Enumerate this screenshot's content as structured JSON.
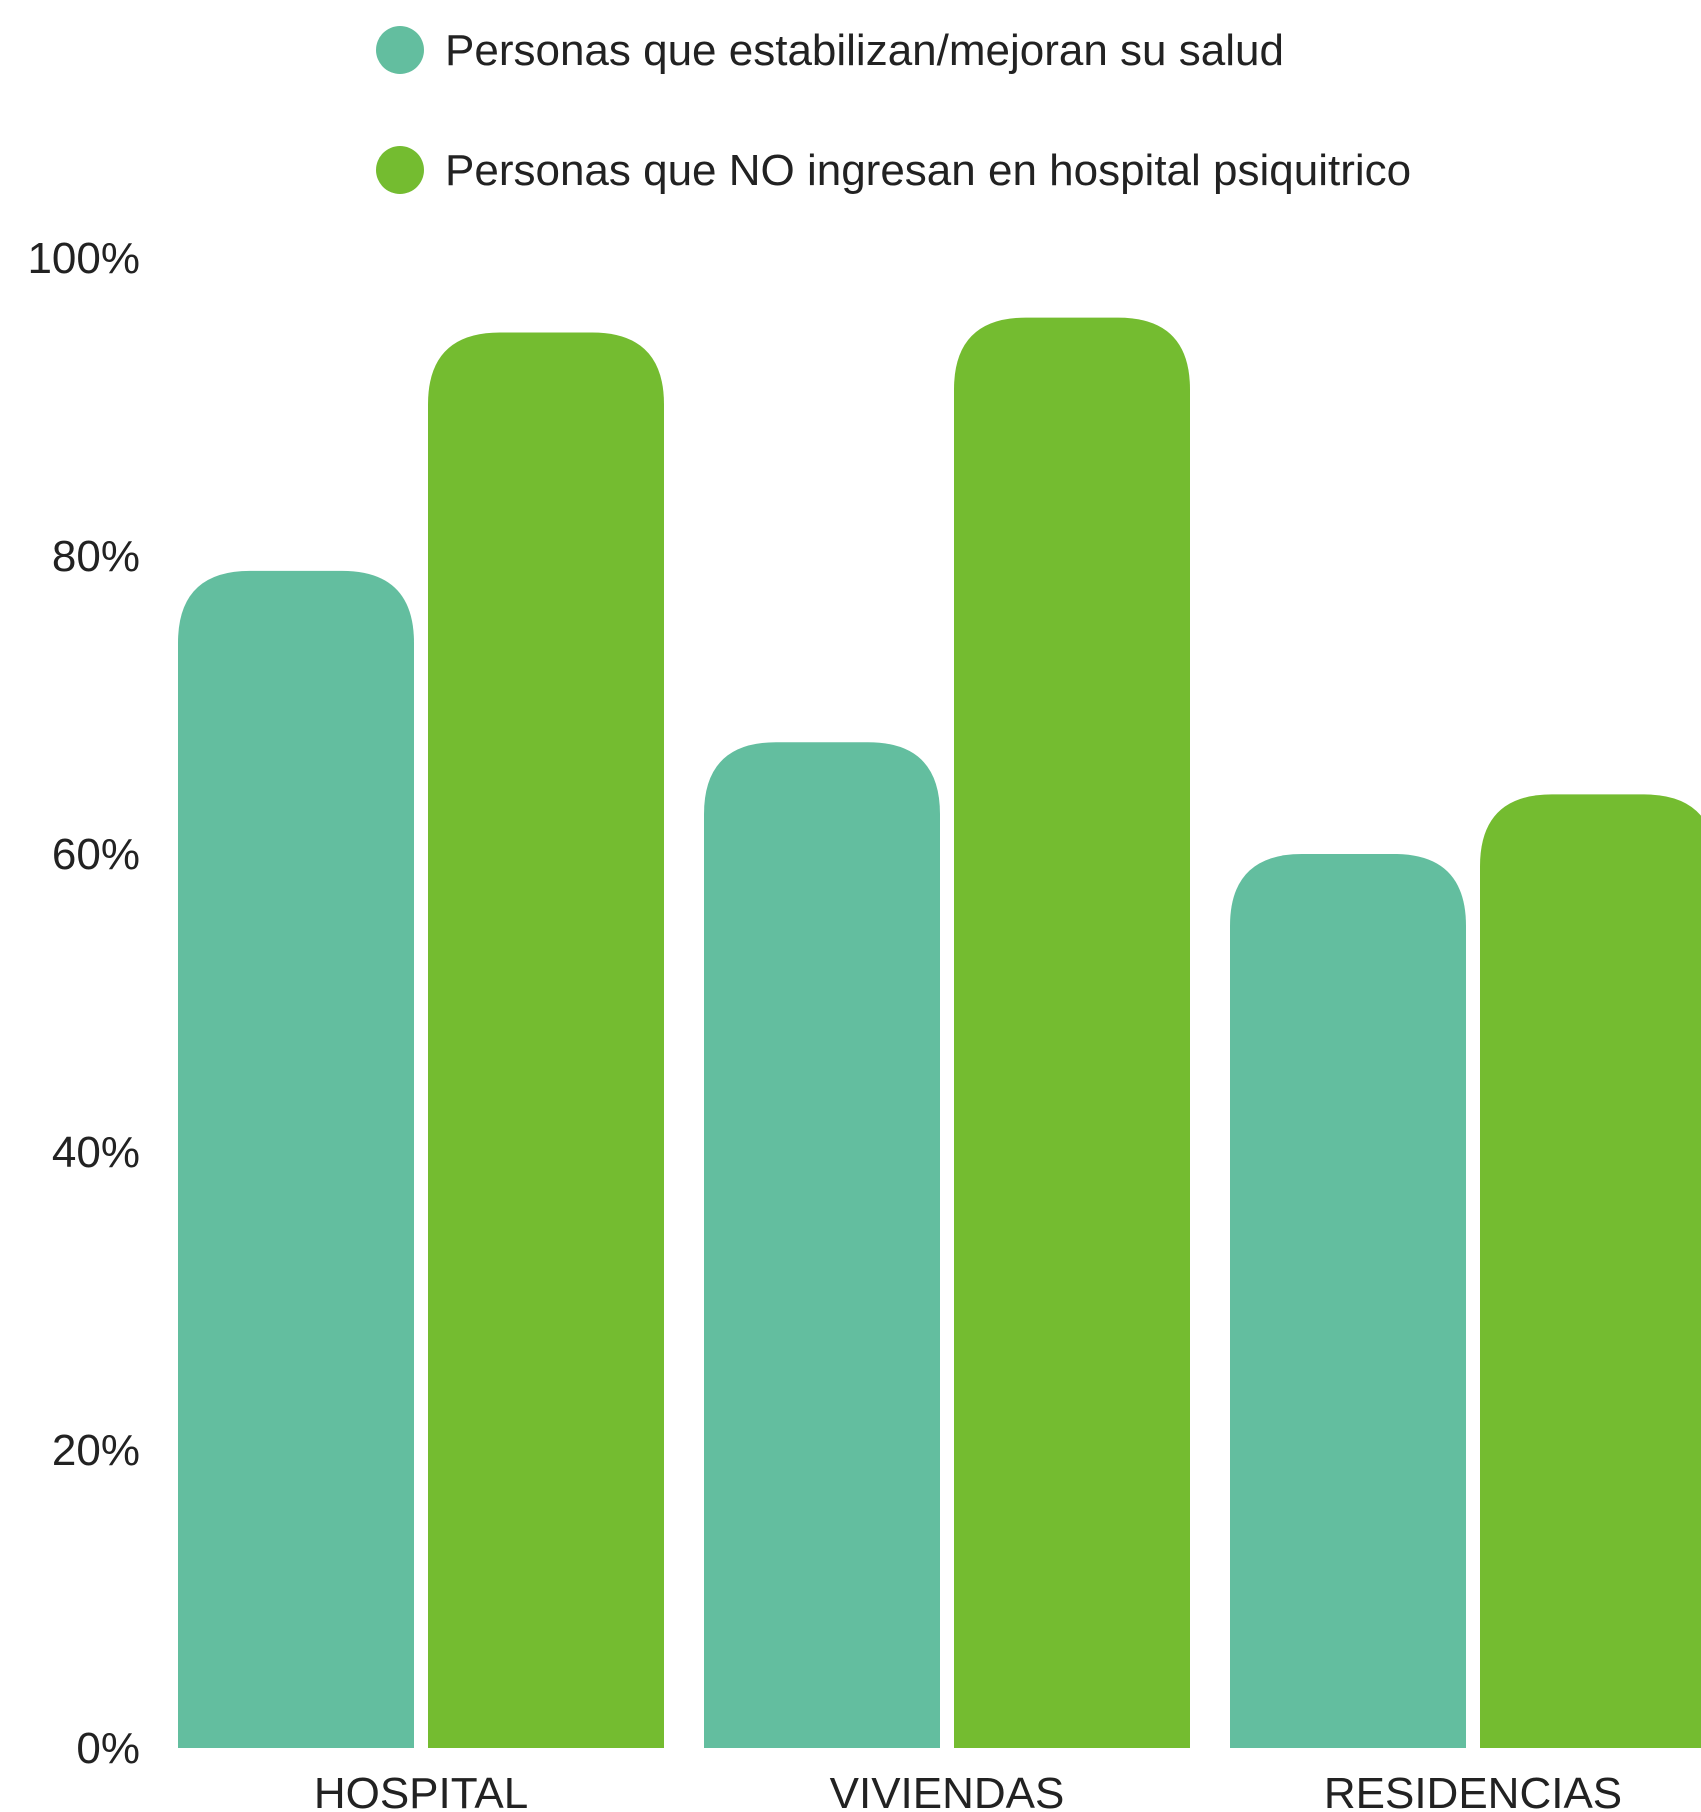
{
  "chart_data": {
    "type": "bar",
    "categories": [
      "HOSPITAL",
      "VIVIENDAS",
      "RESIDENCIAS"
    ],
    "series": [
      {
        "name": "Personas que estabilizan/mejoran su salud",
        "values": [
          79,
          67.5,
          60
        ],
        "color": "#63be9f"
      },
      {
        "name": "Personas que NO ingresan en hospital psiquitrico",
        "values": [
          95,
          96,
          64
        ],
        "color": "#74bc30"
      }
    ],
    "y_ticks": [
      "0%",
      "20%",
      "40%",
      "60%",
      "80%",
      "100%"
    ],
    "ylim": [
      0,
      100
    ],
    "legend_position": "top",
    "grid": false,
    "title": "",
    "xlabel": "",
    "ylabel": ""
  }
}
